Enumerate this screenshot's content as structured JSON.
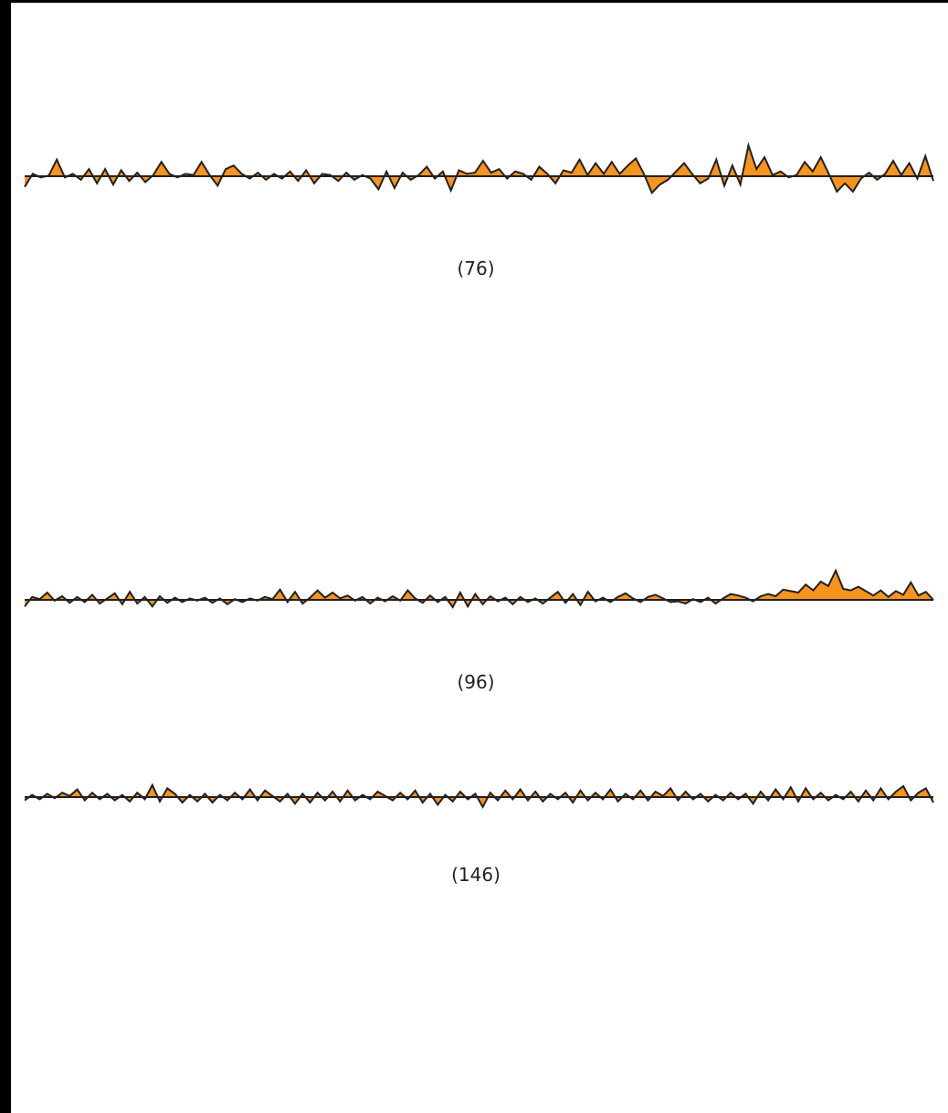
{
  "colors": {
    "fill": "#f7941d",
    "stroke": "#231f20",
    "background": "#ffffff",
    "frame": "#000000"
  },
  "strips": [
    {
      "label": "(76)",
      "values": [
        -0.9,
        0.2,
        -0.1,
        0.05,
        1.4,
        -0.1,
        0.2,
        -0.3,
        0.6,
        -0.6,
        0.6,
        -0.7,
        0.5,
        -0.4,
        0.3,
        -0.5,
        0.1,
        1.2,
        0.2,
        -0.1,
        0.2,
        0.1,
        1.2,
        0.1,
        -0.8,
        0.6,
        0.9,
        0.2,
        -0.2,
        0.3,
        -0.3,
        0.2,
        -0.2,
        0.4,
        -0.4,
        0.5,
        -0.6,
        0.2,
        0.1,
        -0.4,
        0.3,
        -0.3,
        0.1,
        -0.2,
        -1.1,
        0.4,
        -1.0,
        0.3,
        -0.3,
        0.1,
        0.8,
        -0.2,
        0.4,
        -1.2,
        0.5,
        0.2,
        0.3,
        1.3,
        0.3,
        0.6,
        -0.2,
        0.4,
        0.2,
        -0.3,
        0.8,
        0.2,
        -0.6,
        0.5,
        0.3,
        1.4,
        0.1,
        1.1,
        0.2,
        1.2,
        0.2,
        0.9,
        1.5,
        0.2,
        -1.4,
        -0.7,
        -0.3,
        0.4,
        1.1,
        0.2,
        -0.6,
        -0.2,
        1.4,
        -0.8,
        0.9,
        -0.7,
        2.6,
        0.6,
        1.6,
        0.1,
        0.4,
        -0.1,
        0.1,
        1.2,
        0.4,
        1.6,
        0.2,
        -1.3,
        -0.6,
        -1.3,
        -0.2,
        0.3,
        -0.3,
        0.2,
        1.3,
        0.1,
        1.1,
        -0.2,
        1.7,
        -0.4
      ]
    },
    {
      "label": "(96)",
      "values": [
        -0.9,
        0.4,
        0.1,
        1.0,
        -0.1,
        0.5,
        -0.4,
        0.4,
        -0.3,
        0.7,
        -0.5,
        0.2,
        0.9,
        -0.6,
        1.1,
        -0.5,
        0.4,
        -0.9,
        0.5,
        -0.4,
        0.3,
        -0.3,
        0.2,
        -0.1,
        0.3,
        -0.4,
        0.2,
        -0.6,
        0.1,
        -0.3,
        0.2,
        -0.1,
        0.4,
        0.1,
        1.4,
        -0.3,
        1.1,
        -0.5,
        0.3,
        1.3,
        0.3,
        1.0,
        0.2,
        0.6,
        -0.1,
        0.4,
        -0.5,
        0.3,
        -0.2,
        0.5,
        -0.1,
        1.3,
        0.2,
        -0.4,
        0.6,
        -0.3,
        0.4,
        -1.0,
        1.0,
        -0.9,
        0.8,
        -0.6,
        0.5,
        -0.2,
        0.3,
        -0.6,
        0.4,
        -0.3,
        0.2,
        -0.5,
        0.3,
        1.1,
        -0.4,
        0.8,
        -0.7,
        1.1,
        -0.2,
        0.3,
        -0.3,
        0.4,
        0.9,
        0.2,
        -0.3,
        0.4,
        0.7,
        0.2,
        -0.3,
        -0.2,
        -0.5,
        0.1,
        -0.3,
        0.3,
        -0.5,
        0.2,
        0.8,
        0.6,
        0.3,
        -0.2,
        0.5,
        0.8,
        0.5,
        1.4,
        1.2,
        1.0,
        2.1,
        1.3,
        2.5,
        1.9,
        4.0,
        1.5,
        1.3,
        1.8,
        1.2,
        0.6,
        1.3,
        0.4,
        1.2,
        0.7,
        2.4,
        0.6,
        1.1,
        0.0
      ]
    },
    {
      "label": "(146)",
      "values": [
        -0.3,
        0.2,
        -0.2,
        0.3,
        -0.1,
        0.4,
        0.1,
        0.7,
        -0.3,
        0.4,
        -0.2,
        0.3,
        -0.3,
        0.2,
        -0.4,
        0.4,
        -0.2,
        1.1,
        -0.4,
        0.8,
        0.3,
        -0.5,
        0.2,
        -0.4,
        0.3,
        -0.5,
        0.2,
        -0.3,
        0.4,
        -0.2,
        0.7,
        -0.3,
        0.6,
        0.1,
        -0.4,
        0.3,
        -0.6,
        0.3,
        -0.5,
        0.4,
        -0.3,
        0.5,
        -0.4,
        0.6,
        -0.3,
        0.2,
        -0.2,
        0.5,
        0.1,
        -0.3,
        0.4,
        -0.2,
        0.6,
        -0.5,
        0.3,
        -0.7,
        0.2,
        -0.4,
        0.5,
        -0.2,
        0.3,
        -0.9,
        0.4,
        -0.3,
        0.6,
        -0.2,
        0.7,
        -0.3,
        0.5,
        -0.4,
        0.3,
        -0.2,
        0.4,
        -0.5,
        0.6,
        -0.3,
        0.4,
        -0.2,
        0.7,
        -0.4,
        0.3,
        -0.2,
        0.6,
        -0.3,
        0.5,
        0.1,
        0.8,
        -0.3,
        0.5,
        -0.2,
        0.3,
        -0.4,
        0.2,
        -0.3,
        0.4,
        -0.2,
        0.3,
        -0.6,
        0.5,
        -0.3,
        0.7,
        -0.2,
        0.9,
        -0.4,
        0.8,
        -0.2,
        0.4,
        -0.3,
        0.2,
        -0.2,
        0.5,
        -0.4,
        0.6,
        -0.3,
        0.8,
        -0.2,
        0.5,
        1.0,
        -0.3,
        0.4,
        0.8,
        -0.5
      ]
    }
  ]
}
